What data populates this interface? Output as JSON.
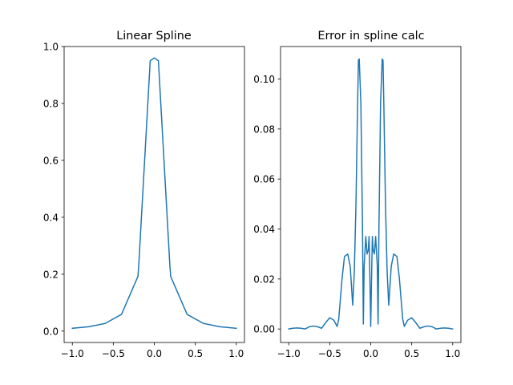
{
  "chart_data": [
    {
      "type": "line",
      "title": "Linear Spline",
      "xlabel": "",
      "ylabel": "",
      "xlim": [
        -1.1,
        1.1
      ],
      "ylim": [
        -0.04,
        1.0
      ],
      "xticks": [
        -1.0,
        -0.5,
        0.0,
        0.5,
        1.0
      ],
      "xtick_labels": [
        "−1.0",
        "−0.5",
        "0.0",
        "0.5",
        "1.0"
      ],
      "yticks": [
        0.0,
        0.2,
        0.4,
        0.6,
        0.8,
        1.0
      ],
      "ytick_labels": [
        "0.0",
        "0.2",
        "0.4",
        "0.6",
        "0.8",
        "1.0"
      ],
      "grid": false,
      "legend": "none",
      "series": [
        {
          "color": "#1f77b4",
          "x": [
            -1.0,
            -0.8,
            -0.6,
            -0.4,
            -0.2,
            -0.19,
            -0.05,
            0.0,
            0.05,
            0.19,
            0.2,
            0.4,
            0.6,
            0.8,
            1.0
          ],
          "y": [
            0.0099,
            0.0154,
            0.027,
            0.0588,
            0.192,
            0.23,
            0.95,
            0.96,
            0.95,
            0.23,
            0.192,
            0.0588,
            0.027,
            0.0154,
            0.0099
          ]
        }
      ]
    },
    {
      "type": "line",
      "title": "Error in spline calc",
      "xlabel": "",
      "ylabel": "",
      "xlim": [
        -1.1,
        1.1
      ],
      "ylim": [
        -0.0054,
        0.113
      ],
      "xticks": [
        -1.0,
        -0.5,
        0.0,
        0.5,
        1.0
      ],
      "xtick_labels": [
        "−1.0",
        "−0.5",
        "0.0",
        "0.5",
        "1.0"
      ],
      "yticks": [
        0.0,
        0.02,
        0.04,
        0.06,
        0.08,
        0.1
      ],
      "ytick_labels": [
        "0.00",
        "0.02",
        "0.04",
        "0.06",
        "0.08",
        "0.10"
      ],
      "grid": false,
      "legend": "none",
      "series": [
        {
          "color": "#1f77b4",
          "x": [
            -1.0,
            -0.95,
            -0.9,
            -0.85,
            -0.8,
            -0.75,
            -0.7,
            -0.65,
            -0.6,
            -0.55,
            -0.5,
            -0.45,
            -0.41,
            -0.39,
            -0.35,
            -0.32,
            -0.28,
            -0.25,
            -0.22,
            -0.2,
            -0.18,
            -0.16,
            -0.15,
            -0.14,
            -0.12,
            -0.1,
            -0.09,
            -0.08,
            -0.06,
            -0.045,
            -0.03,
            -0.02,
            -0.01,
            0.0,
            0.01,
            0.02,
            0.03,
            0.045,
            0.06,
            0.08,
            0.09,
            0.1,
            0.12,
            0.14,
            0.15,
            0.16,
            0.18,
            0.2,
            0.22,
            0.25,
            0.28,
            0.32,
            0.35,
            0.39,
            0.41,
            0.45,
            0.5,
            0.55,
            0.6,
            0.65,
            0.7,
            0.75,
            0.8,
            0.85,
            0.9,
            0.95,
            1.0
          ],
          "y": [
            0.0,
            0.0003,
            0.0004,
            0.0003,
            0.0,
            0.0009,
            0.0012,
            0.0009,
            0.0003,
            0.0025,
            0.0045,
            0.0035,
            0.001,
            0.004,
            0.02,
            0.029,
            0.03,
            0.025,
            0.0095,
            0.023,
            0.05,
            0.09,
            0.1075,
            0.108,
            0.09,
            0.04,
            0.002,
            0.0255,
            0.037,
            0.03,
            0.0315,
            0.037,
            0.02,
            0.001,
            0.02,
            0.037,
            0.0315,
            0.03,
            0.037,
            0.0255,
            0.002,
            0.04,
            0.09,
            0.108,
            0.1075,
            0.09,
            0.05,
            0.023,
            0.0095,
            0.025,
            0.03,
            0.029,
            0.02,
            0.004,
            0.001,
            0.0035,
            0.0045,
            0.0025,
            0.0003,
            0.0009,
            0.0012,
            0.0009,
            0.0,
            0.0003,
            0.0004,
            0.0003,
            0.0
          ]
        }
      ]
    }
  ]
}
